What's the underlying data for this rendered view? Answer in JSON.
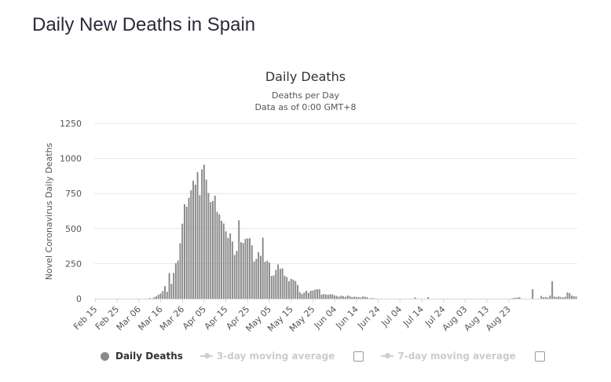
{
  "page": {
    "title": "Daily New Deaths in Spain"
  },
  "chart_data": {
    "type": "bar",
    "title": "Daily Deaths",
    "subtitle": "Deaths per Day",
    "subtitle2": "Data as of 0:00 GMT+8",
    "ylabel": "Novel Coronavirus Daily Deaths",
    "xlabel": "",
    "ylim": [
      0,
      1250
    ],
    "yticks": [
      "0",
      "250",
      "500",
      "750",
      "1000",
      "1250"
    ],
    "ytick_values": [
      0,
      250,
      500,
      750,
      1000,
      1250
    ],
    "xtick_labels": [
      "Feb 15",
      "Feb 25",
      "Mar 06",
      "Mar 16",
      "Mar 26",
      "Apr 05",
      "Apr 15",
      "Apr 25",
      "May 05",
      "May 15",
      "May 25",
      "Jun 04",
      "Jun 14",
      "Jun 24",
      "Jul 04",
      "Jul 14",
      "Jul 24",
      "Aug 03",
      "Aug 13",
      "Aug 23"
    ],
    "start_date": "2020-02-15",
    "grid": true,
    "bar_color": "#8a8a8a",
    "series": [
      {
        "name": "Daily Deaths",
        "values": [
          0,
          0,
          0,
          0,
          0,
          0,
          0,
          0,
          0,
          0,
          0,
          0,
          0,
          0,
          0,
          0,
          0,
          0,
          0,
          0,
          0,
          0,
          0,
          0,
          0,
          5,
          0,
          10,
          17,
          28,
          37,
          54,
          90,
          49,
          183,
          106,
          184,
          253,
          271,
          395,
          535,
          674,
          656,
          720,
          773,
          841,
          813,
          904,
          738,
          923,
          956,
          849,
          754,
          689,
          696,
          735,
          619,
          601,
          556,
          536,
          480,
          433,
          466,
          407,
          312,
          340,
          559,
          403,
          397,
          427,
          430,
          431,
          380,
          265,
          284,
          331,
          305,
          435,
          263,
          271,
          257,
          162,
          166,
          205,
          244,
          213,
          217,
          164,
          154,
          125,
          142,
          135,
          126,
          98,
          47,
          34,
          44,
          57,
          41,
          56,
          58,
          65,
          67,
          68,
          29,
          33,
          30,
          28,
          32,
          31,
          23,
          19,
          14,
          22,
          18,
          13,
          23,
          18,
          12,
          14,
          13,
          12,
          8,
          16,
          13,
          10,
          1,
          5,
          2,
          1,
          0,
          0,
          0,
          0,
          0,
          0,
          0,
          0,
          0,
          0,
          0,
          0,
          0,
          0,
          0,
          0,
          0,
          9,
          0,
          0,
          0,
          0,
          0,
          11,
          0,
          0,
          0,
          0,
          0,
          0,
          0,
          0,
          0,
          0,
          0,
          0,
          0,
          0,
          0,
          0,
          0,
          0,
          0,
          0,
          0,
          0,
          0,
          0,
          0,
          0,
          0,
          0,
          0,
          0,
          0,
          0,
          0,
          0,
          0,
          0,
          0,
          2,
          4,
          6,
          8,
          11,
          0,
          0,
          0,
          0,
          0,
          67,
          0,
          0,
          0,
          20,
          10,
          12,
          8,
          22,
          125,
          15,
          12,
          16,
          10,
          9,
          14,
          44,
          40,
          22,
          18,
          15
        ]
      }
    ]
  },
  "legend": {
    "items": [
      {
        "label": "Daily Deaths",
        "active": true
      },
      {
        "label": "3-day moving average",
        "active": false
      },
      {
        "label": "7-day moving average",
        "active": false
      }
    ]
  }
}
